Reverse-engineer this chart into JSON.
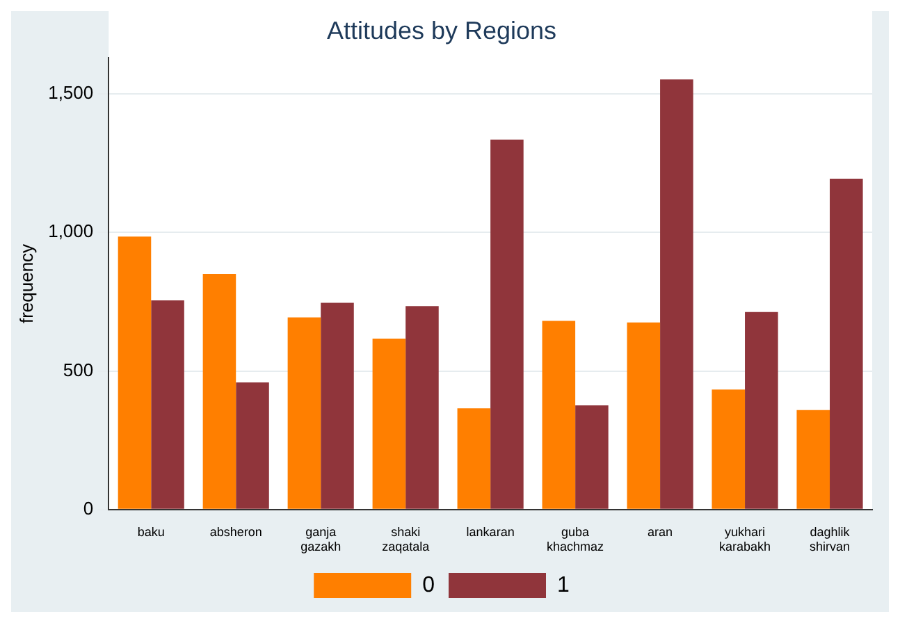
{
  "chart_data": {
    "type": "bar",
    "title": "Attitudes by Regions",
    "ylabel": "frequency",
    "categories": [
      "baku",
      "absheron",
      "ganja gazakh",
      "shaki zaqatala",
      "lankaran",
      "guba khachmaz",
      "aran",
      "yukhari karabakh",
      "daghlik shirvan"
    ],
    "series": [
      {
        "name": "0",
        "color": "#ff7f00",
        "values": [
          985,
          850,
          693,
          617,
          365,
          681,
          675,
          433,
          359
        ]
      },
      {
        "name": "1",
        "color": "#90353b",
        "values": [
          755,
          459,
          746,
          734,
          1335,
          376,
          1552,
          713,
          1194
        ]
      }
    ],
    "ylim": [
      0,
      1630
    ],
    "yticks": [
      0,
      {
        "value": 500,
        "label": "500"
      },
      {
        "value": 1000,
        "label": "1,000"
      },
      {
        "value": 1500,
        "label": "1,500"
      }
    ],
    "grid": "y",
    "legend": "bottom"
  }
}
